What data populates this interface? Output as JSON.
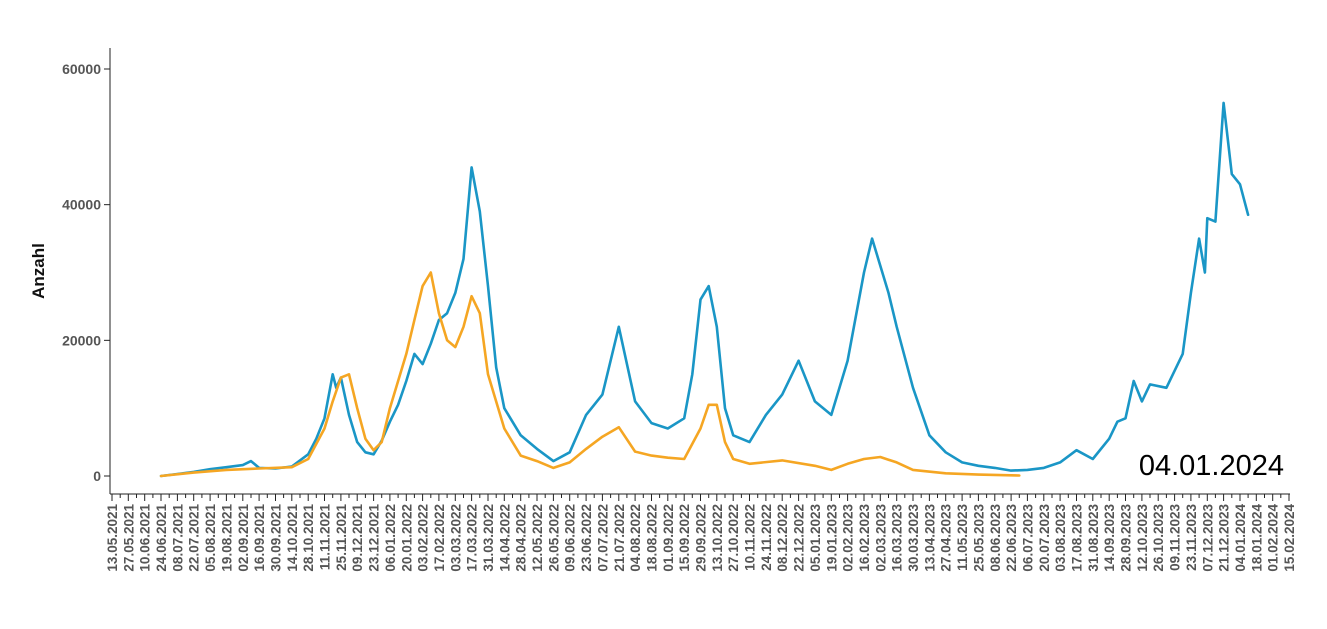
{
  "chart_data": {
    "type": "line",
    "title": "",
    "xlabel": "",
    "ylabel": "Anzahl",
    "annotation": "04.01.2024",
    "ylim": [
      0,
      60000
    ],
    "yticks": [
      0,
      20000,
      40000,
      60000
    ],
    "xlim": [
      "2021-05-13",
      "2024-02-15"
    ],
    "xtick_labels": [
      "13.05.2021",
      "27.05.2021",
      "10.06.2021",
      "24.06.2021",
      "08.07.2021",
      "22.07.2021",
      "05.08.2021",
      "19.08.2021",
      "02.09.2021",
      "16.09.2021",
      "30.09.2021",
      "14.10.2021",
      "28.10.2021",
      "11.11.2021",
      "25.11.2021",
      "09.12.2021",
      "23.12.2021",
      "06.01.2022",
      "20.01.2022",
      "03.02.2022",
      "17.02.2022",
      "03.03.2022",
      "17.03.2022",
      "31.03.2022",
      "14.04.2022",
      "28.04.2022",
      "12.05.2022",
      "26.05.2022",
      "09.06.2022",
      "23.06.2022",
      "07.07.2022",
      "21.07.2022",
      "04.08.2022",
      "18.08.2022",
      "01.09.2022",
      "15.09.2022",
      "29.09.2022",
      "13.10.2022",
      "27.10.2022",
      "10.11.2022",
      "24.11.2022",
      "08.12.2022",
      "22.12.2022",
      "05.01.2023",
      "19.01.2023",
      "02.02.2023",
      "16.02.2023",
      "02.03.2023",
      "16.03.2023",
      "30.03.2023",
      "13.04.2023",
      "27.04.2023",
      "11.05.2023",
      "25.05.2023",
      "08.06.2023",
      "22.06.2023",
      "06.07.2023",
      "20.07.2023",
      "03.08.2023",
      "17.08.2023",
      "31.08.2023",
      "14.09.2023",
      "28.09.2023",
      "12.10.2023",
      "26.10.2023",
      "09.11.2023",
      "23.11.2023",
      "07.12.2023",
      "21.12.2023",
      "04.01.2024",
      "18.01.2024",
      "01.02.2024",
      "15.02.2024"
    ],
    "grid": false,
    "series": [
      {
        "color": "#1a96c6",
        "points": [
          [
            "2021-06-24",
            0
          ],
          [
            "2021-07-08",
            300
          ],
          [
            "2021-07-22",
            600
          ],
          [
            "2021-08-05",
            1000
          ],
          [
            "2021-08-19",
            1300
          ],
          [
            "2021-09-02",
            1600
          ],
          [
            "2021-09-09",
            2200
          ],
          [
            "2021-09-16",
            1200
          ],
          [
            "2021-09-30",
            1100
          ],
          [
            "2021-10-14",
            1400
          ],
          [
            "2021-10-28",
            3200
          ],
          [
            "2021-11-04",
            5500
          ],
          [
            "2021-11-11",
            8500
          ],
          [
            "2021-11-18",
            15000
          ],
          [
            "2021-11-21",
            13000
          ],
          [
            "2021-11-25",
            14500
          ],
          [
            "2021-12-02",
            9000
          ],
          [
            "2021-12-09",
            5000
          ],
          [
            "2021-12-16",
            3500
          ],
          [
            "2021-12-23",
            3200
          ],
          [
            "2021-12-30",
            5200
          ],
          [
            "2022-01-06",
            8000
          ],
          [
            "2022-01-13",
            10500
          ],
          [
            "2022-01-20",
            14000
          ],
          [
            "2022-01-27",
            18000
          ],
          [
            "2022-02-03",
            16500
          ],
          [
            "2022-02-10",
            19500
          ],
          [
            "2022-02-17",
            23000
          ],
          [
            "2022-02-24",
            24000
          ],
          [
            "2022-03-03",
            27000
          ],
          [
            "2022-03-10",
            32000
          ],
          [
            "2022-03-17",
            45500
          ],
          [
            "2022-03-24",
            39000
          ],
          [
            "2022-03-31",
            28000
          ],
          [
            "2022-04-07",
            16000
          ],
          [
            "2022-04-14",
            10000
          ],
          [
            "2022-04-28",
            6000
          ],
          [
            "2022-05-12",
            4000
          ],
          [
            "2022-05-26",
            2200
          ],
          [
            "2022-06-09",
            3500
          ],
          [
            "2022-06-23",
            9000
          ],
          [
            "2022-07-07",
            12000
          ],
          [
            "2022-07-21",
            22000
          ],
          [
            "2022-08-04",
            11000
          ],
          [
            "2022-08-18",
            7800
          ],
          [
            "2022-09-01",
            7000
          ],
          [
            "2022-09-15",
            8500
          ],
          [
            "2022-09-22",
            15000
          ],
          [
            "2022-09-29",
            26000
          ],
          [
            "2022-10-06",
            28000
          ],
          [
            "2022-10-13",
            22000
          ],
          [
            "2022-10-20",
            10000
          ],
          [
            "2022-10-27",
            6000
          ],
          [
            "2022-11-10",
            5000
          ],
          [
            "2022-11-24",
            9000
          ],
          [
            "2022-12-08",
            12000
          ],
          [
            "2022-12-22",
            17000
          ],
          [
            "2023-01-05",
            11000
          ],
          [
            "2023-01-19",
            9000
          ],
          [
            "2023-02-02",
            17000
          ],
          [
            "2023-02-16",
            30000
          ],
          [
            "2023-02-23",
            35000
          ],
          [
            "2023-03-02",
            31000
          ],
          [
            "2023-03-09",
            27000
          ],
          [
            "2023-03-16",
            22000
          ],
          [
            "2023-03-30",
            13000
          ],
          [
            "2023-04-13",
            6000
          ],
          [
            "2023-04-27",
            3500
          ],
          [
            "2023-05-11",
            2000
          ],
          [
            "2023-05-25",
            1500
          ],
          [
            "2023-06-08",
            1200
          ],
          [
            "2023-06-22",
            800
          ],
          [
            "2023-07-06",
            900
          ],
          [
            "2023-07-20",
            1200
          ],
          [
            "2023-08-03",
            2000
          ],
          [
            "2023-08-17",
            3800
          ],
          [
            "2023-08-31",
            2500
          ],
          [
            "2023-09-14",
            5500
          ],
          [
            "2023-09-21",
            8000
          ],
          [
            "2023-09-28",
            8500
          ],
          [
            "2023-10-05",
            14000
          ],
          [
            "2023-10-12",
            11000
          ],
          [
            "2023-10-19",
            13500
          ],
          [
            "2023-11-02",
            13000
          ],
          [
            "2023-11-16",
            18000
          ],
          [
            "2023-11-23",
            27000
          ],
          [
            "2023-11-30",
            35000
          ],
          [
            "2023-12-05",
            30000
          ],
          [
            "2023-12-07",
            38000
          ],
          [
            "2023-12-14",
            37500
          ],
          [
            "2023-12-21",
            55000
          ],
          [
            "2023-12-28",
            44500
          ],
          [
            "2024-01-04",
            43000
          ],
          [
            "2024-01-11",
            38500
          ]
        ]
      },
      {
        "color": "#f5a623",
        "points": [
          [
            "2021-06-24",
            0
          ],
          [
            "2021-07-22",
            500
          ],
          [
            "2021-08-19",
            900
          ],
          [
            "2021-09-16",
            1100
          ],
          [
            "2021-10-14",
            1300
          ],
          [
            "2021-10-28",
            2500
          ],
          [
            "2021-11-11",
            7000
          ],
          [
            "2021-11-18",
            11000
          ],
          [
            "2021-11-25",
            14500
          ],
          [
            "2021-12-02",
            15000
          ],
          [
            "2021-12-09",
            10000
          ],
          [
            "2021-12-16",
            5500
          ],
          [
            "2021-12-23",
            3800
          ],
          [
            "2021-12-30",
            5000
          ],
          [
            "2022-01-06",
            10000
          ],
          [
            "2022-01-20",
            18000
          ],
          [
            "2022-01-27",
            23000
          ],
          [
            "2022-02-03",
            28000
          ],
          [
            "2022-02-10",
            30000
          ],
          [
            "2022-02-17",
            24000
          ],
          [
            "2022-02-24",
            20000
          ],
          [
            "2022-03-03",
            19000
          ],
          [
            "2022-03-10",
            22000
          ],
          [
            "2022-03-17",
            26500
          ],
          [
            "2022-03-24",
            24000
          ],
          [
            "2022-03-31",
            15000
          ],
          [
            "2022-04-14",
            7000
          ],
          [
            "2022-04-28",
            3000
          ],
          [
            "2022-05-12",
            2200
          ],
          [
            "2022-05-26",
            1200
          ],
          [
            "2022-06-09",
            2000
          ],
          [
            "2022-06-23",
            4000
          ],
          [
            "2022-07-07",
            5800
          ],
          [
            "2022-07-21",
            7200
          ],
          [
            "2022-08-04",
            3600
          ],
          [
            "2022-08-18",
            3000
          ],
          [
            "2022-09-01",
            2700
          ],
          [
            "2022-09-15",
            2500
          ],
          [
            "2022-09-29",
            7000
          ],
          [
            "2022-10-06",
            10500
          ],
          [
            "2022-10-13",
            10500
          ],
          [
            "2022-10-20",
            5000
          ],
          [
            "2022-10-27",
            2500
          ],
          [
            "2022-11-10",
            1800
          ],
          [
            "2022-12-08",
            2300
          ],
          [
            "2023-01-05",
            1500
          ],
          [
            "2023-01-19",
            900
          ],
          [
            "2023-02-02",
            1800
          ],
          [
            "2023-02-16",
            2500
          ],
          [
            "2023-03-02",
            2800
          ],
          [
            "2023-03-16",
            2000
          ],
          [
            "2023-03-30",
            900
          ],
          [
            "2023-04-27",
            400
          ],
          [
            "2023-05-25",
            200
          ],
          [
            "2023-06-22",
            100
          ],
          [
            "2023-06-29",
            80
          ]
        ]
      }
    ]
  }
}
